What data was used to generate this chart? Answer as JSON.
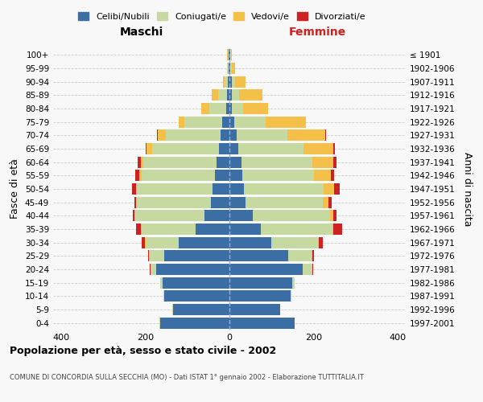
{
  "age_groups": [
    "0-4",
    "5-9",
    "10-14",
    "15-19",
    "20-24",
    "25-29",
    "30-34",
    "35-39",
    "40-44",
    "45-49",
    "50-54",
    "55-59",
    "60-64",
    "65-69",
    "70-74",
    "75-79",
    "80-84",
    "85-89",
    "90-94",
    "95-99",
    "100+"
  ],
  "birth_years": [
    "1997-2001",
    "1992-1996",
    "1987-1991",
    "1982-1986",
    "1977-1981",
    "1972-1976",
    "1967-1971",
    "1962-1966",
    "1957-1961",
    "1952-1956",
    "1947-1951",
    "1942-1946",
    "1937-1941",
    "1932-1936",
    "1927-1931",
    "1922-1926",
    "1917-1921",
    "1912-1916",
    "1907-1911",
    "1902-1906",
    "≤ 1901"
  ],
  "males": {
    "celibi": [
      165,
      135,
      155,
      160,
      175,
      155,
      120,
      80,
      60,
      45,
      40,
      35,
      30,
      25,
      22,
      18,
      8,
      5,
      3,
      2,
      2
    ],
    "coniugati": [
      1,
      1,
      2,
      4,
      12,
      35,
      80,
      130,
      165,
      175,
      180,
      175,
      175,
      160,
      130,
      90,
      40,
      22,
      8,
      3,
      2
    ],
    "vedovi": [
      0,
      0,
      0,
      0,
      1,
      1,
      1,
      1,
      1,
      2,
      3,
      4,
      6,
      12,
      18,
      12,
      20,
      15,
      5,
      1,
      1
    ],
    "divorziati": [
      0,
      0,
      0,
      0,
      1,
      2,
      8,
      12,
      5,
      5,
      10,
      10,
      8,
      3,
      2,
      0,
      0,
      0,
      0,
      0,
      0
    ]
  },
  "females": {
    "nubili": [
      155,
      120,
      145,
      150,
      175,
      140,
      100,
      75,
      55,
      38,
      35,
      30,
      28,
      22,
      18,
      12,
      5,
      5,
      5,
      2,
      2
    ],
    "coniugate": [
      1,
      1,
      2,
      5,
      22,
      55,
      110,
      170,
      185,
      185,
      190,
      172,
      170,
      155,
      120,
      75,
      28,
      18,
      8,
      3,
      2
    ],
    "vedove": [
      0,
      0,
      0,
      0,
      1,
      2,
      2,
      3,
      8,
      12,
      25,
      40,
      50,
      70,
      90,
      95,
      60,
      55,
      25,
      8,
      2
    ],
    "divorziate": [
      0,
      0,
      0,
      0,
      2,
      5,
      10,
      20,
      8,
      8,
      12,
      8,
      8,
      5,
      3,
      0,
      0,
      0,
      0,
      0,
      0
    ]
  },
  "colors": {
    "celibi": "#3B6EA5",
    "coniugati": "#C5D9A0",
    "vedovi": "#F5C04A",
    "divorziati": "#CC2222"
  },
  "title": "Popolazione per età, sesso e stato civile - 2002",
  "subtitle": "COMUNE DI CONCORDIA SULLA SECCHIA (MO) - Dati ISTAT 1° gennaio 2002 - Elaborazione TUTTITALIA.IT",
  "xlabel_left": "Maschi",
  "xlabel_right": "Femmine",
  "ylabel_left": "Fasce di età",
  "ylabel_right": "Anni di nascita",
  "xlim": 420,
  "legend_labels": [
    "Celibi/Nubili",
    "Coniugati/e",
    "Vedovi/e",
    "Divorziati/e"
  ],
  "background_color": "#f8f8f8",
  "grid_color": "#cccccc"
}
